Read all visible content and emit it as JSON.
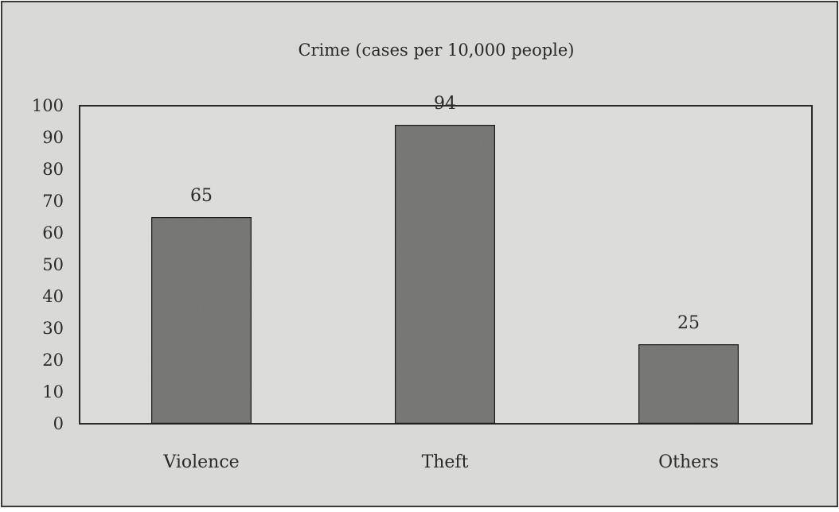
{
  "chart_data": {
    "type": "bar",
    "title": "Crime (cases per 10,000 people)",
    "categories": [
      "Violence",
      "Theft",
      "Others"
    ],
    "values": [
      65,
      94,
      25
    ],
    "data_labels": [
      "65",
      "94",
      "25"
    ],
    "ylim": [
      0,
      100
    ],
    "yticks": [
      0,
      10,
      20,
      30,
      40,
      50,
      60,
      70,
      80,
      90,
      100
    ],
    "xlabel": "",
    "ylabel": "",
    "grid": true,
    "legend": "none",
    "colors": {
      "background": "#d9d9d7",
      "plot_background": "#dcdcda",
      "bar_fill": "#7c7c7a",
      "bar_stroke": "#1e1e1e",
      "grid": "#bdbdbb",
      "frame": "#2a2a2a"
    }
  }
}
